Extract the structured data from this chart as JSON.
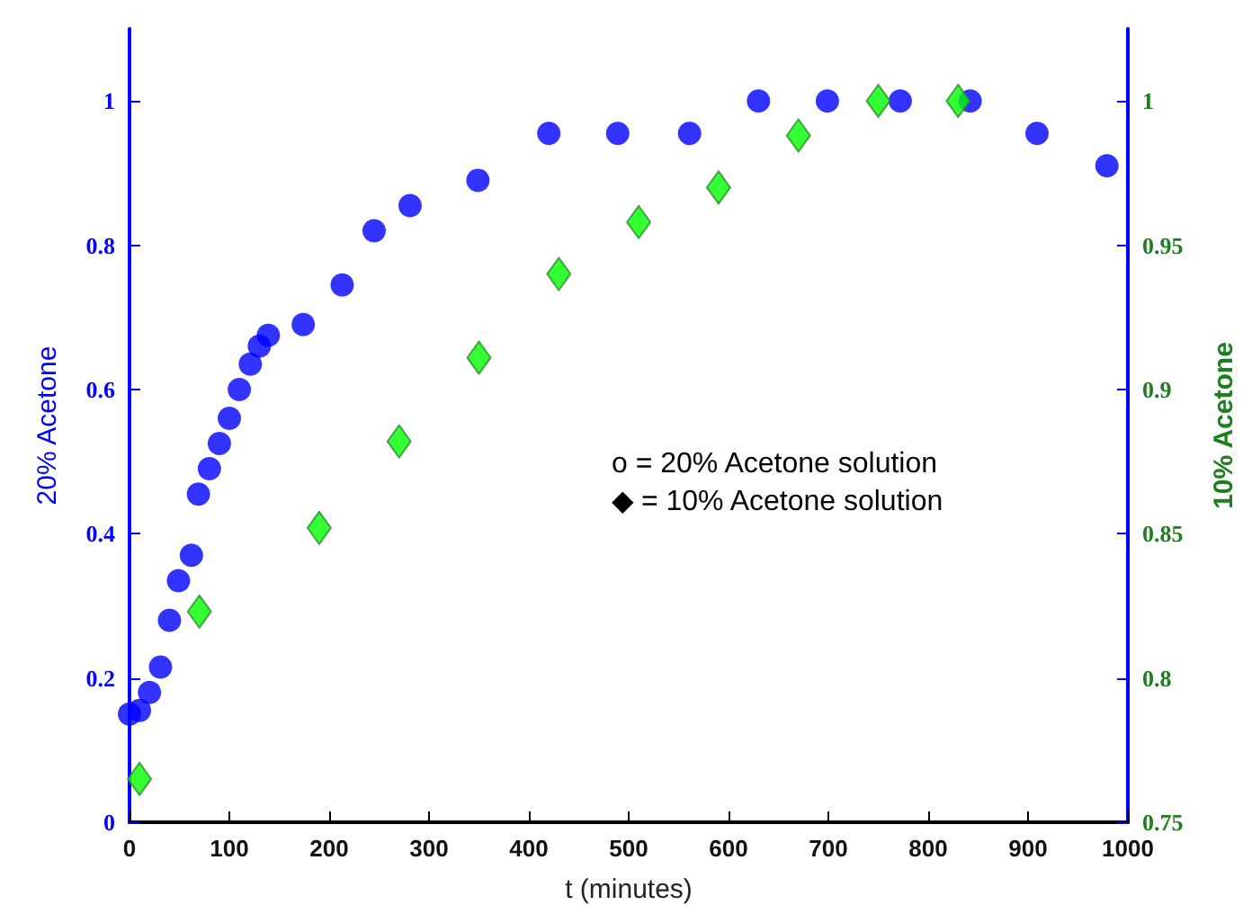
{
  "chart_data": {
    "type": "scatter",
    "xlabel": "t (minutes)",
    "ylabel": "20% Acetone",
    "y2label": "10% Acetone",
    "xlim": [
      0,
      1000
    ],
    "xticks": [
      0,
      100,
      200,
      300,
      400,
      500,
      600,
      700,
      800,
      900,
      1000
    ],
    "ylim": [
      0,
      1.1
    ],
    "yticks": [
      0,
      0.2,
      0.4,
      0.6,
      0.8,
      1
    ],
    "y2lim": [
      0.75,
      1.025
    ],
    "y2ticks": [
      0.75,
      0.8,
      0.85,
      0.9,
      0.95,
      1
    ],
    "grid": false,
    "annotations": [
      "o = 20% Acetone solution",
      "◆ = 10% Acetone solution"
    ],
    "series": [
      {
        "color": "#0000ff",
        "marker": "circle",
        "x": [
          0,
          10,
          20,
          31,
          40,
          49,
          62,
          69,
          80,
          90,
          100,
          110,
          121,
          130,
          139,
          174,
          213,
          245,
          281,
          349,
          420,
          489,
          561,
          630,
          699,
          772,
          842,
          909,
          979
        ],
        "values": [
          0.15,
          0.155,
          0.18,
          0.215,
          0.28,
          0.335,
          0.37,
          0.455,
          0.49,
          0.525,
          0.56,
          0.6,
          0.635,
          0.66,
          0.675,
          0.69,
          0.745,
          0.82,
          0.855,
          0.89,
          0.955,
          0.955,
          0.955,
          1,
          1,
          1,
          1,
          0.955,
          0.91
        ]
      },
      {
        "color": "#00ff00",
        "marker": "diamond",
        "axis": "y2",
        "x": [
          10,
          70,
          190,
          270,
          350,
          430,
          510,
          590,
          670,
          750,
          830
        ],
        "values": [
          0.765,
          0.823,
          0.852,
          0.882,
          0.911,
          0.94,
          0.958,
          0.97,
          0.988,
          1,
          1
        ]
      }
    ]
  }
}
